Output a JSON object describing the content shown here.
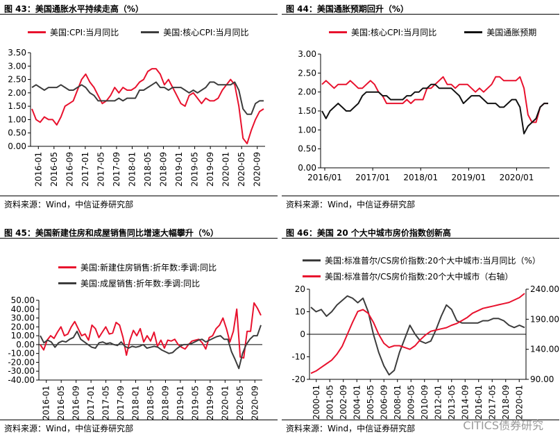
{
  "colors": {
    "red": "#e8112d",
    "dark": "#3c3c3c"
  },
  "source_text": "资料来源：Wind，中信证券研究部",
  "watermark_text": "CITICS债券研究",
  "panels": [
    {
      "title": "图 43：美国通胀水平持续走高（%）"
    },
    {
      "title": "图 44：美国通胀预期回升（%）"
    },
    {
      "title": "图 45：美国新建住房和成屋销售同比增速大幅攀升（%）"
    },
    {
      "title": "图 46：美国 20 个大中城市房价指数创新高"
    }
  ],
  "chart_data": [
    {
      "type": "line",
      "title": "图 43：美国通胀水平持续走高（%）",
      "ylim": [
        0,
        3.5
      ],
      "yticks": [
        "0.00",
        "0.50",
        "1.00",
        "1.50",
        "2.00",
        "2.50",
        "3.00",
        "3.50"
      ],
      "xticks": [
        "2016-01",
        "2016-05",
        "2016-09",
        "2017-01",
        "2017-05",
        "2017-09",
        "2018-01",
        "2018-05",
        "2018-09",
        "2019-01",
        "2019-05",
        "2019-09",
        "2020-01",
        "2020-05",
        "2020-09"
      ],
      "x_start": "2016-01",
      "series": [
        {
          "name": "美国:CPI:当月同比",
          "color": "#e8112d",
          "values": [
            1.4,
            1.0,
            0.9,
            1.1,
            1.0,
            1.0,
            0.8,
            1.1,
            1.5,
            1.6,
            1.7,
            2.1,
            2.5,
            2.7,
            2.4,
            2.2,
            1.9,
            1.6,
            1.7,
            1.9,
            2.2,
            2.0,
            2.2,
            2.1,
            2.1,
            2.2,
            2.4,
            2.5,
            2.8,
            2.9,
            2.9,
            2.7,
            2.3,
            2.5,
            2.2,
            1.9,
            1.6,
            1.5,
            1.9,
            2.0,
            1.8,
            1.6,
            1.8,
            1.7,
            1.7,
            1.8,
            2.1,
            2.3,
            2.5,
            2.3,
            1.5,
            0.3,
            0.1,
            0.6,
            1.0,
            1.3,
            1.4
          ]
        },
        {
          "name": "美国:核心CPI:当月同比",
          "color": "#3c3c3c",
          "values": [
            2.2,
            2.3,
            2.2,
            2.1,
            2.2,
            2.2,
            2.2,
            2.3,
            2.2,
            2.1,
            2.1,
            2.2,
            2.3,
            2.2,
            2.0,
            1.9,
            1.7,
            1.7,
            1.7,
            1.7,
            1.7,
            1.8,
            1.7,
            1.8,
            1.8,
            1.8,
            2.1,
            2.1,
            2.2,
            2.3,
            2.4,
            2.2,
            2.2,
            2.1,
            2.2,
            2.2,
            2.2,
            2.1,
            2.0,
            2.1,
            2.0,
            2.1,
            2.2,
            2.4,
            2.4,
            2.3,
            2.3,
            2.3,
            2.3,
            2.4,
            2.1,
            1.4,
            1.2,
            1.2,
            1.6,
            1.7,
            1.7
          ]
        }
      ]
    },
    {
      "type": "line",
      "title": "图 44：美国通胀预期回升（%）",
      "ylim": [
        0,
        3.0
      ],
      "yticks": [
        "0.00",
        "0.50",
        "1.00",
        "1.50",
        "2.00",
        "2.50",
        "3.00"
      ],
      "xticks": [
        "2016/01",
        "2017/01",
        "2018/01",
        "2019/01",
        "2020/01"
      ],
      "x_start": "2016-01",
      "series": [
        {
          "name": "美国:核心CPI:当月同比",
          "color": "#e8112d",
          "values": [
            2.2,
            2.3,
            2.2,
            2.1,
            2.2,
            2.2,
            2.2,
            2.3,
            2.2,
            2.1,
            2.1,
            2.2,
            2.3,
            2.2,
            2.0,
            1.9,
            1.7,
            1.7,
            1.7,
            1.7,
            1.7,
            1.8,
            1.7,
            1.8,
            1.8,
            1.8,
            2.1,
            2.1,
            2.2,
            2.3,
            2.4,
            2.2,
            2.2,
            2.1,
            2.2,
            2.2,
            2.2,
            2.1,
            2.0,
            2.1,
            2.0,
            2.1,
            2.2,
            2.4,
            2.4,
            2.3,
            2.3,
            2.3,
            2.3,
            2.4,
            2.1,
            1.4,
            1.2,
            1.2,
            1.6,
            1.7,
            1.7
          ]
        },
        {
          "name": "美国通胀预期",
          "color": "#111111",
          "values": [
            1.5,
            1.3,
            1.5,
            1.6,
            1.7,
            1.6,
            1.5,
            1.5,
            1.6,
            1.7,
            1.9,
            2.0,
            2.0,
            2.0,
            2.0,
            1.9,
            1.9,
            1.8,
            1.8,
            1.8,
            1.8,
            1.9,
            1.9,
            2.0,
            2.0,
            2.1,
            2.1,
            2.2,
            2.2,
            2.1,
            2.1,
            2.1,
            2.1,
            2.0,
            1.9,
            1.7,
            1.8,
            1.9,
            1.9,
            1.9,
            1.8,
            1.7,
            1.7,
            1.7,
            1.6,
            1.6,
            1.7,
            1.8,
            1.8,
            1.6,
            0.9,
            1.1,
            1.2,
            1.3,
            1.6,
            1.7,
            1.7
          ]
        }
      ]
    },
    {
      "type": "line",
      "title": "图 45：美国新建住房和成屋销售同比增速大幅攀升（%）",
      "ylim": [
        -40,
        50
      ],
      "yticks": [
        "-40.00",
        "-30.00",
        "-20.00",
        "-10.00",
        "0.00",
        "10.00",
        "20.00",
        "30.00",
        "40.00",
        "50.00"
      ],
      "xticks": [
        "2016-01",
        "2016-05",
        "2016-09",
        "2017-01",
        "2017-05",
        "2017-09",
        "2018-01",
        "2018-05",
        "2018-09",
        "2019-01",
        "2019-05",
        "2019-09",
        "2020-01",
        "2020-05",
        "2020-09"
      ],
      "x_start": "2016-01",
      "series": [
        {
          "name": "美国:新建住房销售:折年数:季调:同比",
          "color": "#e8112d",
          "values": [
            0,
            -6,
            5,
            10,
            7,
            14,
            20,
            10,
            12,
            20,
            26,
            18,
            10,
            12,
            5,
            22,
            18,
            8,
            14,
            20,
            12,
            13,
            25,
            22,
            8,
            -12,
            5,
            16,
            10,
            18,
            3,
            10,
            4,
            14,
            -2,
            5,
            -4,
            5,
            4,
            6,
            0,
            -3,
            -5,
            0,
            4,
            5,
            6,
            2,
            -5,
            8,
            10,
            18,
            22,
            30,
            18,
            3,
            15,
            40,
            -14,
            -15,
            15,
            15,
            47,
            41,
            33
          ]
        },
        {
          "name": "美国:成屋销售:折年数:季调:同比",
          "color": "#3c3c3c",
          "values": [
            10,
            2,
            5,
            3,
            -3,
            2,
            4,
            3,
            6,
            8,
            15,
            6,
            3,
            0,
            -3,
            -4,
            2,
            3,
            1,
            2,
            0,
            -1,
            3,
            -2,
            -4,
            -2,
            -3,
            -2,
            0,
            -4,
            -3,
            -2,
            -3,
            -6,
            -8,
            -10,
            -9,
            -5,
            -2,
            0,
            0,
            1,
            3,
            5,
            6,
            3,
            5,
            7,
            9,
            10,
            6,
            6,
            -8,
            -17,
            -27,
            -10,
            0,
            6,
            10,
            10,
            22
          ]
        }
      ]
    },
    {
      "type": "line",
      "title": "图 46：美国 20 个大中城市房价指数创新高",
      "ylim": [
        -20,
        20
      ],
      "yticks": [
        "-20",
        "-10",
        "0",
        "10",
        "20"
      ],
      "y2lim": [
        90,
        240
      ],
      "y2ticks": [
        "90.00",
        "140.00",
        "190.00",
        "240.00"
      ],
      "xticks": [
        "2000-01",
        "2001-05",
        "2002-09",
        "2004-01",
        "2005-05",
        "2006-09",
        "2008-01",
        "2009-05",
        "2010-09",
        "2012-01",
        "2013-05",
        "2014-09",
        "2016-01",
        "2017-05",
        "2018-09",
        "2020-01"
      ],
      "x_start": "2000-01",
      "series": [
        {
          "name": "美国:标准普尔/CS房价指数:20个大中城市:当月同比（%）",
          "color": "#3c3c3c",
          "axis": "left",
          "values": [
            12,
            10,
            11,
            8,
            10,
            13,
            15,
            17,
            16,
            14,
            16,
            10,
            0,
            -8,
            -14,
            -18,
            -16,
            -8,
            -2,
            4,
            0,
            -3,
            -4,
            -3,
            2,
            8,
            13,
            11,
            6,
            5,
            5,
            5,
            5,
            6,
            6,
            7,
            7,
            6,
            4,
            3,
            4,
            3
          ]
        },
        {
          "name": "美国:标准普尔/CS房价指数:20个大中城市（右轴）",
          "color": "#e8112d",
          "axis": "right",
          "values": [
            100,
            104,
            110,
            116,
            122,
            132,
            145,
            165,
            185,
            203,
            206,
            200,
            185,
            165,
            150,
            143,
            146,
            146,
            143,
            140,
            146,
            156,
            164,
            170,
            172,
            174,
            176,
            180,
            183,
            188,
            193,
            200,
            204,
            208,
            210,
            212,
            214,
            216,
            218,
            222,
            226,
            233
          ]
        }
      ]
    }
  ]
}
